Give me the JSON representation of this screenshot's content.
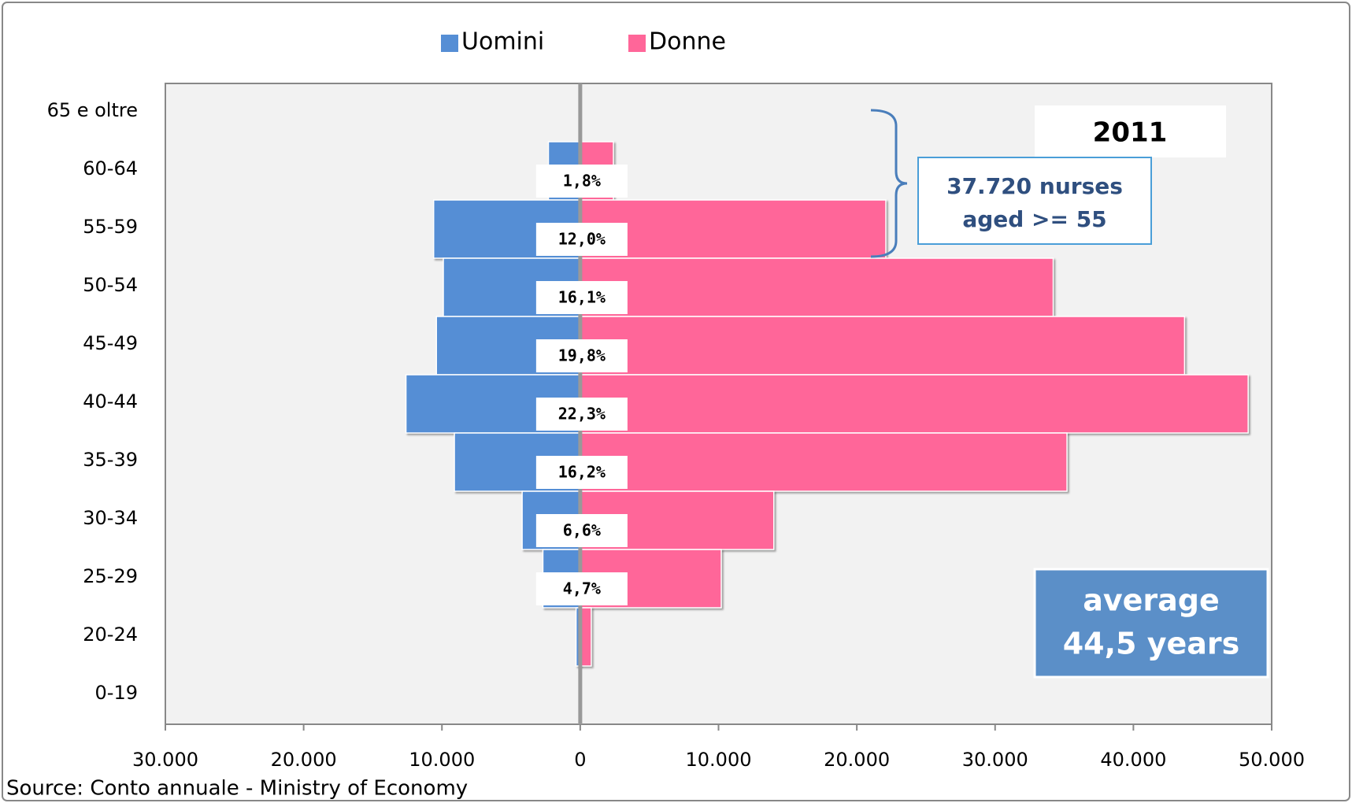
{
  "chart_data": {
    "type": "pyramid",
    "categories": [
      "65 e oltre",
      "60-64",
      "55-59",
      "50-54",
      "45-49",
      "40-44",
      "35-39",
      "30-34",
      "25-29",
      "20-24",
      "0-19"
    ],
    "series": [
      {
        "name": "Uomini",
        "color": "#558ed5",
        "values": [
          0,
          -2300,
          -10600,
          -9900,
          -10400,
          -12600,
          -9100,
          -4200,
          -2700,
          -300,
          0
        ]
      },
      {
        "name": "Donne",
        "color": "#ff6699",
        "values": [
          0,
          2400,
          22100,
          34200,
          43700,
          48300,
          35200,
          14000,
          10200,
          800,
          0
        ]
      }
    ],
    "share_labels": [
      null,
      "1,8%",
      "12,0%",
      "16,1%",
      "19,8%",
      "22,3%",
      "16,2%",
      "6,6%",
      "4,7%",
      null,
      null
    ],
    "xlim": [
      -30000,
      50000
    ],
    "xticks": [
      {
        "value": -30000,
        "label": "30.000"
      },
      {
        "value": -20000,
        "label": "20.000"
      },
      {
        "value": -10000,
        "label": "10.000"
      },
      0,
      {
        "value": 10000,
        "label": "10.000"
      },
      {
        "value": 20000,
        "label": "20.000"
      },
      {
        "value": 30000,
        "label": "30.000"
      },
      {
        "value": 40000,
        "label": "40.000"
      },
      {
        "value": 50000,
        "label": "50.000"
      }
    ],
    "annotations": {
      "year": "2011",
      "bracket_note": [
        "37.720 nurses",
        "aged >= 55"
      ],
      "average": [
        "average",
        "44,5 years"
      ]
    },
    "source": "Source: Conto annuale  - Ministry of Economy",
    "legend": "top"
  }
}
